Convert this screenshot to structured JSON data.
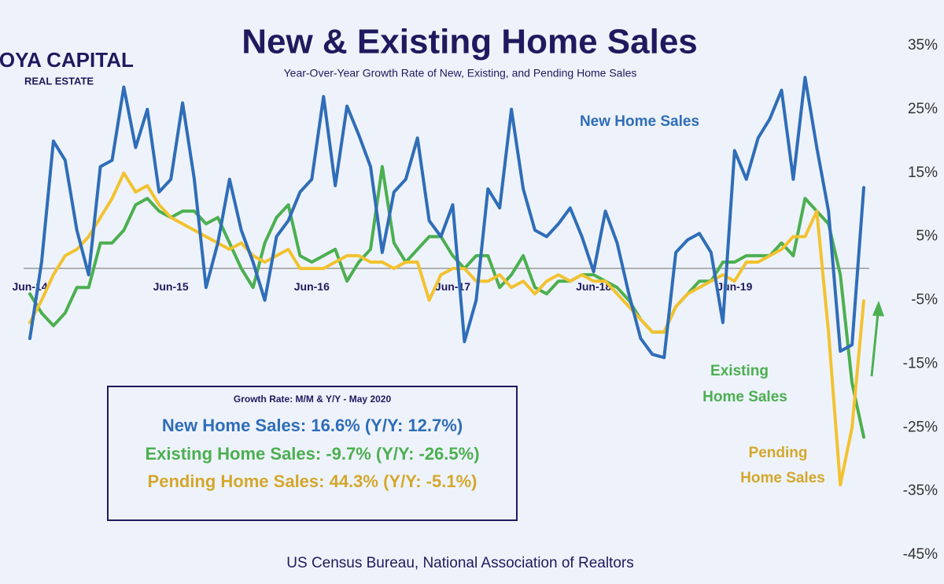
{
  "chart_data": {
    "type": "line",
    "title": "New & Existing Home Sales",
    "subtitle": "Year-Over-Year Growth Rate of New, Existing, and Pending Home Sales",
    "source": "US Census Bureau, National Association of Realtors",
    "logo": {
      "line1": "HOYA CAPITAL",
      "line2": "REAL ESTATE"
    },
    "categories": [
      "Jun-14",
      null,
      null,
      null,
      null,
      null,
      null,
      null,
      null,
      null,
      null,
      null,
      "Jun-15",
      null,
      null,
      null,
      null,
      null,
      null,
      null,
      null,
      null,
      null,
      null,
      "Jun-16",
      null,
      null,
      null,
      null,
      null,
      null,
      null,
      null,
      null,
      null,
      null,
      "Jun-17",
      null,
      null,
      null,
      null,
      null,
      null,
      null,
      null,
      null,
      null,
      null,
      "Jun-18",
      null,
      null,
      null,
      null,
      null,
      null,
      null,
      null,
      null,
      null,
      null,
      "Jun-19",
      null,
      null,
      null,
      null,
      null,
      null,
      null,
      null,
      null,
      null,
      null
    ],
    "series": [
      {
        "name": "New Home Sales",
        "color": "#2f6db8",
        "values": [
          -11,
          1,
          20,
          17,
          6,
          -1,
          16,
          17,
          28.5,
          19,
          25,
          12,
          14,
          26,
          14,
          -3,
          4,
          14,
          6,
          1,
          -5,
          5,
          7.5,
          12,
          14,
          27,
          13,
          25.5,
          21,
          16,
          2.5,
          12,
          14,
          20.5,
          7.5,
          5,
          10,
          -11.5,
          -5,
          12.5,
          9.5,
          25,
          12.5,
          6,
          5,
          7,
          9.5,
          5,
          -0.5,
          9,
          4,
          -4,
          -11,
          -13.5,
          -14,
          2.5,
          4.5,
          5.5,
          2.5,
          -8.5,
          18.5,
          14,
          20.5,
          23.5,
          28,
          14,
          30,
          19,
          9,
          -13,
          -12,
          12.7
        ]
      },
      {
        "name": "Existing Home Sales",
        "color": "#4caf50",
        "values": [
          -4,
          -7,
          -9,
          -7,
          -3,
          -3,
          4,
          4,
          6,
          10,
          11,
          9,
          8,
          9,
          9,
          7,
          8,
          4,
          0,
          -3,
          4,
          8,
          10,
          2,
          1,
          2,
          3,
          -2,
          1,
          3,
          16,
          4,
          1,
          3,
          5,
          5,
          2,
          0,
          2,
          2,
          -3,
          -1,
          2,
          -3,
          -4,
          -2,
          -2,
          -1,
          -1,
          -2,
          -3,
          -5,
          -8,
          -10,
          -10,
          -6,
          -4,
          -2,
          -2,
          1,
          1,
          2,
          2,
          2,
          4,
          2,
          11,
          9,
          7,
          -1,
          -18,
          -26.5
        ]
      },
      {
        "name": "Pending Home Sales",
        "color": "#f2c230",
        "values": [
          -8.5,
          -5,
          -1,
          2,
          3,
          5,
          8,
          11,
          15,
          12,
          13,
          10,
          8,
          7,
          6,
          5,
          4,
          3,
          4,
          2,
          1,
          2,
          3,
          0,
          0,
          0,
          1,
          2,
          2,
          1,
          1,
          0,
          1,
          1,
          -5,
          -1,
          0,
          0,
          -2,
          -2,
          -1,
          -3,
          -2,
          -4,
          -2,
          -1,
          -2,
          -1,
          -2,
          -2,
          -4,
          -6,
          -8,
          -10,
          -10,
          -6,
          -4,
          -3,
          -2,
          -1,
          -2,
          1,
          1,
          2,
          3,
          5,
          5,
          9,
          -10,
          -34,
          -25,
          -5.1
        ]
      }
    ],
    "annotations": {
      "new": [
        "New Home Sales"
      ],
      "existing": [
        "Existing",
        "Home Sales"
      ],
      "pending": [
        "Pending",
        "Home Sales"
      ]
    },
    "summary": {
      "heading": "Growth Rate: M/M & Y/Y - May 2020",
      "lines": [
        "New Home Sales: 16.6% (Y/Y: 12.7%)",
        "Existing Home Sales: -9.7% (Y/Y: -26.5%)",
        "Pending Home Sales: 44.3% (Y/Y: -5.1%)"
      ]
    },
    "ylim": [
      -45,
      35
    ],
    "yticks": [
      {
        "value": 35,
        "label": "35%"
      },
      {
        "value": 25,
        "label": "25%"
      },
      {
        "value": 15,
        "label": "15%"
      },
      {
        "value": 5,
        "label": "5%"
      },
      {
        "value": -5,
        "label": "-5%"
      },
      {
        "value": -15,
        "label": "-15%"
      },
      {
        "value": -25,
        "label": "-25%"
      },
      {
        "value": -35,
        "label": "-35%"
      },
      {
        "value": -45,
        "label": "-45%"
      }
    ],
    "grid": false
  }
}
